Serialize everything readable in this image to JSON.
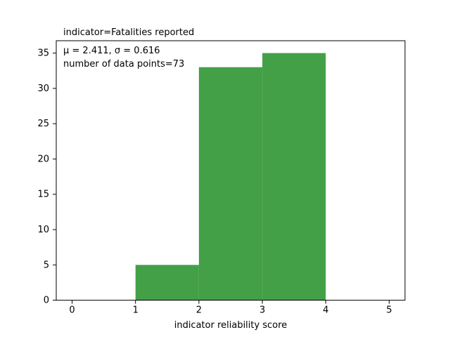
{
  "chart_data": {
    "type": "bar",
    "title": "indicator=Fatalities reported",
    "xlabel": "indicator reliability score",
    "ylabel": "",
    "xlim": [
      -0.25,
      5.25
    ],
    "ylim": [
      0,
      36.75
    ],
    "x_ticks": [
      0,
      1,
      2,
      3,
      4,
      5
    ],
    "y_ticks": [
      0,
      5,
      10,
      15,
      20,
      25,
      30,
      35
    ],
    "bins": [
      {
        "start": 1,
        "end": 2,
        "count": 5
      },
      {
        "start": 2,
        "end": 3,
        "count": 33
      },
      {
        "start": 3,
        "end": 4,
        "count": 35
      }
    ],
    "bar_color": "#43a047",
    "annotations": {
      "stats_line": "μ = 2.411,  σ = 0.616",
      "count_line": "number of data points=73"
    },
    "grid": false
  }
}
